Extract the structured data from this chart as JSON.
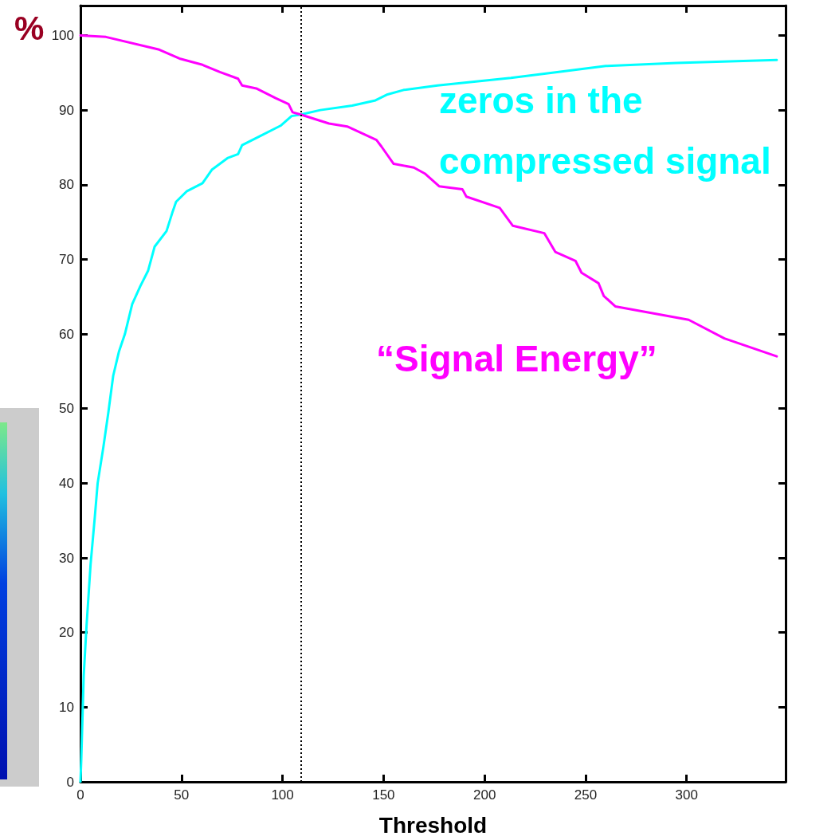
{
  "chart_data": {
    "type": "line",
    "xlabel": "Threshold",
    "ylabel": "%",
    "xlim": [
      0,
      349
    ],
    "xticks": [
      0,
      50,
      100,
      150,
      200,
      250,
      300
    ],
    "ylim": [
      0,
      104
    ],
    "yticks": [
      0,
      10,
      20,
      30,
      40,
      50,
      60,
      70,
      80,
      90,
      100
    ],
    "grid": false,
    "legend": false,
    "marker": "none",
    "line_style": "solid",
    "tick_labels": "xy",
    "ref_lines": [
      {
        "axis": "x",
        "value": 109,
        "color": "#000000",
        "line_style": "dotted"
      }
    ],
    "series": [
      {
        "name": "zeros in the\ncompressed signal",
        "color": "#00ffff",
        "x": [
          0,
          0.4,
          1.6,
          3,
          5,
          7.1,
          8.5,
          11.3,
          13.8,
          16.2,
          19,
          22,
          25.6,
          29.6,
          33.5,
          36.7,
          42.6,
          45.4,
          47.3,
          52.5,
          60.4,
          65,
          73,
          78,
          80,
          88.8,
          99,
          104.5,
          109,
          118.7,
          134.5,
          146,
          152,
          160,
          176.7,
          213,
          236.7,
          260,
          295,
          344.6
        ],
        "values": [
          0,
          3,
          14.2,
          20.9,
          29.1,
          35.5,
          40,
          44.8,
          49.5,
          54.4,
          57.6,
          60,
          64,
          66.4,
          68.5,
          71.7,
          73.8,
          76.2,
          77.7,
          79.1,
          80.2,
          82,
          83.6,
          84.1,
          85.3,
          86.5,
          87.9,
          89.2,
          89.4,
          90,
          90.6,
          91.3,
          92.1,
          92.7,
          93.3,
          94.3,
          95.1,
          95.9,
          96.3,
          96.7
        ]
      },
      {
        "name": "“Signal Energy”",
        "color": "#ff00ff",
        "x": [
          0,
          12.6,
          39,
          49,
          60,
          69,
          78,
          80,
          87,
          96.6,
          103,
          105,
          109,
          123,
          132,
          146.5,
          149,
          155,
          165,
          170.4,
          177.5,
          189,
          191,
          207.5,
          214,
          229.6,
          235,
          245,
          248,
          256.4,
          259,
          264.7,
          301,
          318.7,
          344.6
        ],
        "values": [
          100,
          99.8,
          98.1,
          96.9,
          96.1,
          95.1,
          94.2,
          93.3,
          92.9,
          91.6,
          90.8,
          89.7,
          89.4,
          88.2,
          87.8,
          86,
          85.1,
          82.8,
          82.3,
          81.5,
          79.8,
          79.4,
          78.4,
          76.9,
          74.5,
          73.5,
          71,
          69.8,
          68.2,
          66.8,
          65.1,
          63.7,
          61.9,
          59.4,
          57
        ]
      }
    ]
  }
}
